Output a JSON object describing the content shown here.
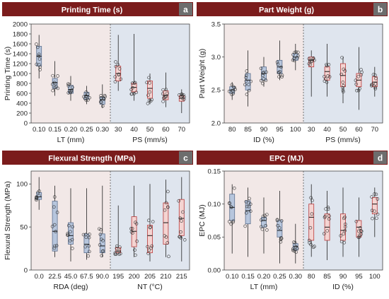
{
  "colors": {
    "header": "#7b1c1c",
    "badge": "#6d6d6d",
    "bg_left": "#f2e8e7",
    "bg_right": "#dfe5ee",
    "box_blue": "#b7c6dd",
    "box_blue_edge": "#5c6f8e",
    "box_red": "#f4d4d2",
    "box_red_edge": "#b83a3a"
  },
  "chart_data": [
    {
      "type": "box",
      "id": "a",
      "title": "Printing Time (s)",
      "ylabel": "Printing Time (s)",
      "ylim": [
        0,
        2000
      ],
      "yticks": [
        0,
        200,
        400,
        600,
        800,
        1000,
        1200,
        1400,
        1600,
        1800,
        2000
      ],
      "left": {
        "xlabel": "LT (mm)",
        "categories": [
          "0.10",
          "0.15",
          "0.20",
          "0.25",
          "0.30"
        ],
        "boxes": [
          [
            900,
            1150,
            1350,
            1550,
            1780
          ],
          [
            550,
            700,
            820,
            900,
            1250
          ],
          [
            450,
            600,
            680,
            760,
            950
          ],
          [
            380,
            480,
            550,
            620,
            750
          ],
          [
            300,
            380,
            470,
            520,
            780
          ]
        ]
      },
      "right": {
        "xlabel": "PS (mm/s)",
        "categories": [
          "30",
          "40",
          "50",
          "60",
          "70"
        ],
        "boxes": [
          [
            650,
            850,
            1000,
            1150,
            1780
          ],
          [
            450,
            630,
            720,
            800,
            1800
          ],
          [
            380,
            500,
            700,
            850,
            1000
          ],
          [
            320,
            470,
            560,
            650,
            1020
          ],
          [
            200,
            440,
            500,
            550,
            680
          ]
        ]
      }
    },
    {
      "type": "box",
      "id": "b",
      "title": "Part Weight (g)",
      "ylabel": "Part Weight (g)",
      "ylim": [
        2.0,
        3.5
      ],
      "yticks": [
        "2.0",
        "2.5",
        "3.0",
        "3.5"
      ],
      "left": {
        "xlabel": "ID (%)",
        "categories": [
          "80",
          "85",
          "90",
          "95",
          "100"
        ],
        "boxes": [
          [
            2.35,
            2.45,
            2.5,
            2.55,
            2.62
          ],
          [
            2.25,
            2.5,
            2.65,
            2.75,
            3.1
          ],
          [
            2.55,
            2.65,
            2.75,
            2.85,
            3.0
          ],
          [
            2.65,
            2.75,
            2.85,
            2.95,
            3.25
          ],
          [
            2.8,
            2.95,
            3.0,
            3.05,
            3.2
          ]
        ]
      },
      "right": {
        "xlabel": "PS (mm/s)",
        "categories": [
          "30",
          "40",
          "50",
          "60",
          "70"
        ],
        "boxes": [
          [
            2.4,
            2.85,
            2.95,
            3.0,
            3.1
          ],
          [
            2.4,
            2.65,
            2.78,
            2.85,
            3.2
          ],
          [
            2.3,
            2.55,
            2.72,
            2.9,
            3.0
          ],
          [
            2.2,
            2.55,
            2.65,
            2.75,
            3.15
          ],
          [
            2.4,
            2.55,
            2.62,
            2.7,
            2.85
          ]
        ]
      }
    },
    {
      "type": "box",
      "id": "c",
      "title": "Flexural Strength (MPa)",
      "ylabel": "Flexural Strength (MPa)",
      "ylim": [
        0,
        115
      ],
      "yticks": [
        0,
        50,
        100
      ],
      "left": {
        "xlabel": "RDA (deg)",
        "categories": [
          "0.0",
          "22.5",
          "45.0",
          "67.5",
          "90.0"
        ],
        "boxes": [
          [
            70,
            82,
            85,
            90,
            108
          ],
          [
            15,
            22,
            45,
            80,
            98
          ],
          [
            10,
            30,
            40,
            55,
            95
          ],
          [
            12,
            20,
            30,
            42,
            95
          ],
          [
            15,
            20,
            28,
            42,
            98
          ]
        ]
      },
      "right": {
        "xlabel": "NT (°C)",
        "categories": [
          "195",
          "200",
          "205",
          "210",
          "215"
        ],
        "boxes": [
          [
            18,
            20,
            22,
            26,
            75
          ],
          [
            15,
            27,
            45,
            62,
            98
          ],
          [
            10,
            20,
            40,
            52,
            100
          ],
          [
            15,
            30,
            55,
            78,
            105
          ],
          [
            10,
            40,
            60,
            82,
            108
          ]
        ]
      }
    },
    {
      "type": "box",
      "id": "d",
      "title": "EPC (MJ)",
      "ylabel": "EPC (MJ)",
      "ylim": [
        0.0,
        0.15
      ],
      "yticks": [
        "0.00",
        "0.05",
        "0.10",
        "0.15"
      ],
      "left": {
        "xlabel": "LT (mm)",
        "categories": [
          "0.10",
          "0.15",
          "0.20",
          "0.25",
          "0.30"
        ],
        "boxes": [
          [
            0.025,
            0.075,
            0.095,
            0.115,
            0.13
          ],
          [
            0.02,
            0.07,
            0.09,
            0.105,
            0.125
          ],
          [
            0.025,
            0.065,
            0.075,
            0.08,
            0.11
          ],
          [
            0.01,
            0.05,
            0.06,
            0.075,
            0.12
          ],
          [
            0.01,
            0.03,
            0.036,
            0.04,
            0.07
          ]
        ]
      },
      "right": {
        "xlabel": "ID (%)",
        "categories": [
          "80",
          "85",
          "90",
          "95",
          "100"
        ],
        "boxes": [
          [
            0.02,
            0.045,
            0.08,
            0.1,
            0.13
          ],
          [
            0.015,
            0.045,
            0.065,
            0.085,
            0.12
          ],
          [
            0.02,
            0.045,
            0.06,
            0.085,
            0.125
          ],
          [
            0.02,
            0.05,
            0.065,
            0.075,
            0.11
          ],
          [
            0.05,
            0.085,
            0.1,
            0.11,
            0.125
          ]
        ]
      }
    }
  ]
}
